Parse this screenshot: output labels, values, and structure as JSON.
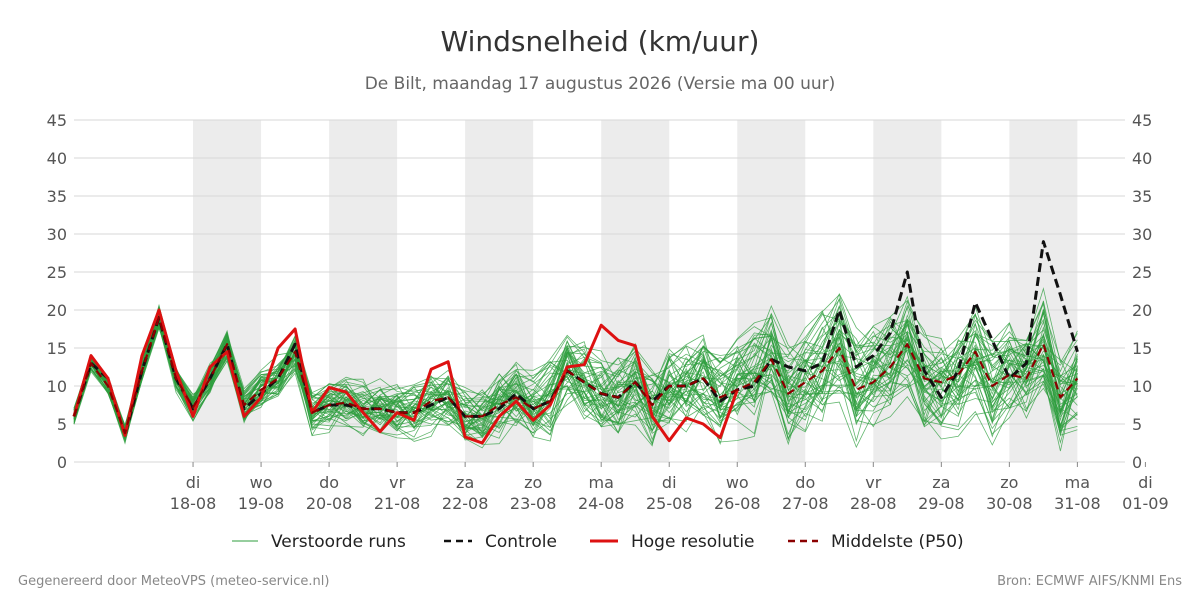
{
  "title": "Windsnelheid (km/uur)",
  "subtitle": "De Bilt, maandag 17 augustus 2026 (Versie ma 00 uur)",
  "footer_left": "Gegenereerd door MeteoVPS (meteo-service.nl)",
  "footer_right": "Bron: ECMWF AIFS/KNMI Ens",
  "colors": {
    "ensemble": "#2e9e3e",
    "controle": "#111111",
    "hoge_resolutie": "#dd1111",
    "p50": "#8b0000",
    "shade": "#ececec",
    "grid": "#d7d7d7"
  },
  "chart_data": {
    "type": "line",
    "ylim": [
      0,
      45
    ],
    "yticks": [
      0,
      5,
      10,
      15,
      20,
      25,
      30,
      35,
      40,
      45
    ],
    "x_unit": "days after 17-08 00 uur",
    "xlim": [
      -0.75,
      14.7
    ],
    "xticks": [
      {
        "day": "di",
        "date": "18-08"
      },
      {
        "day": "wo",
        "date": "19-08"
      },
      {
        "day": "do",
        "date": "20-08"
      },
      {
        "day": "vr",
        "date": "21-08"
      },
      {
        "day": "za",
        "date": "22-08"
      },
      {
        "day": "zo",
        "date": "23-08"
      },
      {
        "day": "ma",
        "date": "24-08"
      },
      {
        "day": "di",
        "date": "25-08"
      },
      {
        "day": "wo",
        "date": "26-08"
      },
      {
        "day": "do",
        "date": "27-08"
      },
      {
        "day": "vr",
        "date": "28-08"
      },
      {
        "day": "za",
        "date": "29-08"
      },
      {
        "day": "zo",
        "date": "30-08"
      },
      {
        "day": "ma",
        "date": "31-08"
      },
      {
        "day": "di",
        "date": "01-09"
      }
    ],
    "shaded_days": [
      1,
      3,
      5,
      7,
      9,
      11,
      13
    ],
    "grid": true,
    "legend_position": "bottom",
    "legend": [
      {
        "key": "ensemble",
        "label": "Verstoorde runs",
        "style": "thin"
      },
      {
        "key": "controle",
        "label": "Controle",
        "style": "dashed"
      },
      {
        "key": "hoge_resolutie",
        "label": "Hoge resolutie",
        "style": "solid"
      },
      {
        "key": "p50",
        "label": "Middelste (P50)",
        "style": "dashed"
      }
    ],
    "x": [
      -0.75,
      -0.5,
      -0.25,
      0,
      0.25,
      0.5,
      0.75,
      1,
      1.25,
      1.5,
      1.75,
      2,
      2.25,
      2.5,
      2.75,
      3,
      3.25,
      3.5,
      3.75,
      4,
      4.25,
      4.5,
      4.75,
      5,
      5.25,
      5.5,
      5.75,
      6,
      6.25,
      6.5,
      6.75,
      7,
      7.25,
      7.5,
      7.75,
      8,
      8.25,
      8.5,
      8.75,
      9,
      9.25,
      9.5,
      9.75,
      10,
      10.25,
      10.5,
      10.75,
      11,
      11.25,
      11.5,
      11.75,
      12,
      12.25,
      12.5,
      12.75,
      13,
      13.25,
      13.5,
      13.75,
      14,
      14.25,
      14.5,
      14.7
    ],
    "hoge_resolutie": [
      6,
      14,
      11,
      3.5,
      14,
      20,
      12,
      6,
      12.5,
      14.5,
      6,
      8.5,
      15,
      17.5,
      6.5,
      9.8,
      9.2,
      6.5,
      4,
      6.5,
      5.5,
      12.2,
      13.2,
      3.3,
      2.5,
      6,
      8,
      5.5,
      7.5,
      12.5,
      12.8,
      18,
      16,
      15.3,
      6,
      2.8,
      5.8,
      5,
      3.2,
      9.5
    ],
    "controle": [
      6,
      13,
      11,
      3.5,
      12,
      19,
      11,
      7,
      11,
      15.5,
      7,
      9,
      11,
      15.5,
      6.5,
      7.5,
      7.5,
      7,
      7,
      6.5,
      6.5,
      7.5,
      8.5,
      6,
      6,
      7,
      9,
      7,
      8,
      12,
      10.5,
      9,
      8.5,
      10.5,
      8,
      10,
      10,
      11,
      8,
      9.5,
      10,
      13.5,
      12.5,
      12,
      13,
      20,
      12.5,
      14,
      17,
      25,
      12,
      8.5,
      12,
      21,
      16,
      11,
      13,
      29,
      22,
      14.5
    ],
    "p50": [
      6,
      13,
      10,
      3.8,
      12,
      19,
      11,
      7.2,
      11,
      15.5,
      7.5,
      9.5,
      11,
      14.5,
      6.5,
      7.5,
      7.8,
      7,
      7,
      6.5,
      6.5,
      8,
      8.5,
      6,
      6,
      7.5,
      8.5,
      7,
      8,
      12,
      10.5,
      9,
      8.5,
      10.5,
      7.5,
      10,
      10,
      11,
      8.5,
      9.5,
      10.5,
      13.5,
      9,
      10.5,
      12,
      15,
      9.5,
      10.5,
      12.5,
      15.5,
      11,
      10.5,
      11.5,
      14.5,
      10,
      11.5,
      11,
      15.5,
      8.5,
      11
    ]
  }
}
